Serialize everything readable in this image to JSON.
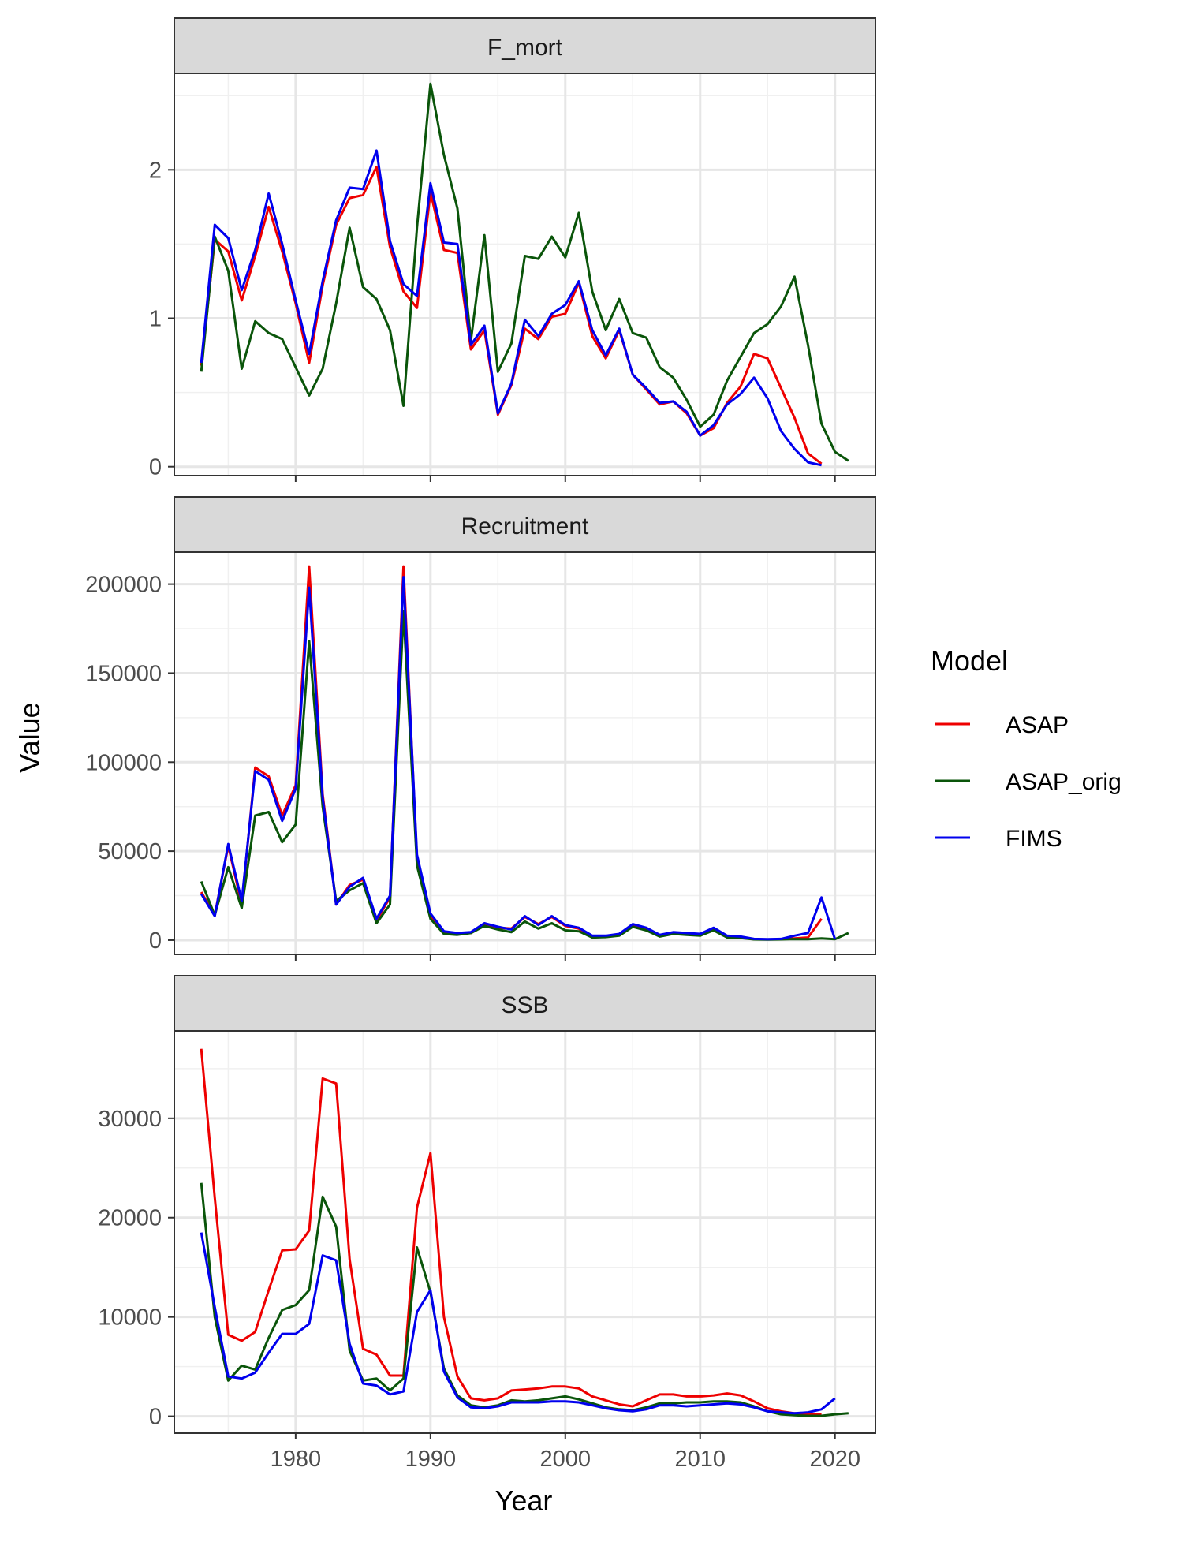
{
  "axis": {
    "xlabel": "Year",
    "ylabel": "Value"
  },
  "legend": {
    "title": "Model",
    "placement": "right"
  },
  "x_ticks": [
    1980,
    1990,
    2000,
    2010,
    2020
  ],
  "series_colors": {
    "ASAP": "#ee0000",
    "ASAP_orig": "#0a550a",
    "FIMS": "#0000ee"
  },
  "chart_data": [
    {
      "type": "line",
      "title": "F_mort",
      "xlabel": "Year",
      "ylabel": "Value",
      "xlim": [
        1971,
        2023
      ],
      "ylim": [
        -0.06,
        2.65
      ],
      "y_ticks": [
        0,
        1,
        2
      ],
      "y_tick_labels": [
        "0",
        "1",
        "2"
      ],
      "grid": true,
      "series": [
        {
          "name": "ASAP",
          "x": [
            1973,
            1974,
            1975,
            1976,
            1977,
            1978,
            1979,
            1980,
            1981,
            1982,
            1983,
            1984,
            1985,
            1986,
            1987,
            1988,
            1989,
            1990,
            1991,
            1992,
            1993,
            1994,
            1995,
            1996,
            1997,
            1998,
            1999,
            2000,
            2001,
            2002,
            2003,
            2004,
            2005,
            2006,
            2007,
            2008,
            2009,
            2010,
            2011,
            2012,
            2013,
            2014,
            2015,
            2016,
            2017,
            2018,
            2019
          ],
          "values": [
            0.68,
            1.53,
            1.45,
            1.12,
            1.42,
            1.75,
            1.45,
            1.1,
            0.7,
            1.22,
            1.63,
            1.81,
            1.83,
            2.02,
            1.48,
            1.18,
            1.07,
            1.85,
            1.46,
            1.44,
            0.79,
            0.92,
            0.35,
            0.55,
            0.93,
            0.86,
            1.01,
            1.03,
            1.24,
            0.88,
            0.73,
            0.92,
            0.62,
            0.52,
            0.42,
            0.44,
            0.36,
            0.21,
            0.26,
            0.43,
            0.54,
            0.76,
            0.73,
            0.53,
            0.33,
            0.09,
            0.02
          ]
        },
        {
          "name": "ASAP_orig",
          "x": [
            1973,
            1974,
            1975,
            1976,
            1977,
            1978,
            1979,
            1980,
            1981,
            1982,
            1983,
            1984,
            1985,
            1986,
            1987,
            1988,
            1989,
            1990,
            1991,
            1992,
            1993,
            1994,
            1995,
            1996,
            1997,
            1998,
            1999,
            2000,
            2001,
            2002,
            2003,
            2004,
            2005,
            2006,
            2007,
            2008,
            2009,
            2010,
            2011,
            2012,
            2013,
            2014,
            2015,
            2016,
            2017,
            2018,
            2019,
            2020,
            2021
          ],
          "values": [
            0.64,
            1.55,
            1.32,
            0.66,
            0.98,
            0.9,
            0.86,
            0.67,
            0.48,
            0.66,
            1.1,
            1.61,
            1.21,
            1.13,
            0.92,
            0.41,
            1.61,
            2.58,
            2.1,
            1.74,
            0.85,
            1.56,
            0.64,
            0.83,
            1.42,
            1.4,
            1.55,
            1.41,
            1.71,
            1.18,
            0.92,
            1.13,
            0.9,
            0.87,
            0.67,
            0.6,
            0.45,
            0.27,
            0.35,
            0.58,
            0.74,
            0.9,
            0.96,
            1.08,
            1.28,
            0.82,
            0.29,
            0.1,
            0.04
          ]
        },
        {
          "name": "FIMS",
          "x": [
            1973,
            1974,
            1975,
            1976,
            1977,
            1978,
            1979,
            1980,
            1981,
            1982,
            1983,
            1984,
            1985,
            1986,
            1987,
            1988,
            1989,
            1990,
            1991,
            1992,
            1993,
            1994,
            1995,
            1996,
            1997,
            1998,
            1999,
            2000,
            2001,
            2002,
            2003,
            2004,
            2005,
            2006,
            2007,
            2008,
            2009,
            2010,
            2011,
            2012,
            2013,
            2014,
            2015,
            2016,
            2017,
            2018,
            2019
          ],
          "values": [
            0.7,
            1.63,
            1.54,
            1.19,
            1.46,
            1.84,
            1.5,
            1.12,
            0.76,
            1.25,
            1.66,
            1.88,
            1.87,
            2.13,
            1.52,
            1.23,
            1.15,
            1.91,
            1.51,
            1.5,
            0.82,
            0.95,
            0.36,
            0.56,
            0.99,
            0.88,
            1.03,
            1.09,
            1.25,
            0.92,
            0.75,
            0.93,
            0.62,
            0.53,
            0.43,
            0.44,
            0.37,
            0.21,
            0.28,
            0.42,
            0.49,
            0.6,
            0.46,
            0.24,
            0.12,
            0.03,
            0.01
          ]
        }
      ]
    },
    {
      "type": "line",
      "title": "Recruitment",
      "xlabel": "Year",
      "ylabel": "Value",
      "xlim": [
        1971,
        2023
      ],
      "ylim": [
        -8000,
        218000
      ],
      "y_ticks": [
        0,
        50000,
        100000,
        150000,
        200000
      ],
      "y_tick_labels": [
        "0",
        "50000",
        "100000",
        "150000",
        "200000"
      ],
      "grid": true,
      "series": [
        {
          "name": "ASAP",
          "x": [
            1973,
            1974,
            1975,
            1976,
            1977,
            1978,
            1979,
            1980,
            1981,
            1982,
            1983,
            1984,
            1985,
            1986,
            1987,
            1988,
            1989,
            1990,
            1991,
            1992,
            1993,
            1994,
            1995,
            1996,
            1997,
            1998,
            1999,
            2000,
            2001,
            2002,
            2003,
            2004,
            2005,
            2006,
            2007,
            2008,
            2009,
            2010,
            2011,
            2012,
            2013,
            2014,
            2015,
            2016,
            2017,
            2018,
            2019
          ],
          "values": [
            27000,
            14000,
            53000,
            20000,
            97000,
            92000,
            70000,
            87000,
            210000,
            82000,
            20000,
            31000,
            34000,
            11000,
            24000,
            210000,
            45000,
            14000,
            4500,
            3500,
            4000,
            9000,
            7000,
            6500,
            13000,
            9000,
            13000,
            8000,
            6500,
            2000,
            2200,
            3000,
            8500,
            6500,
            2500,
            4000,
            3500,
            3000,
            6000,
            2000,
            1500,
            500,
            400,
            500,
            1000,
            1500,
            12000
          ]
        },
        {
          "name": "ASAP_orig",
          "x": [
            1973,
            1974,
            1975,
            1976,
            1977,
            1978,
            1979,
            1980,
            1981,
            1982,
            1983,
            1984,
            1985,
            1986,
            1987,
            1988,
            1989,
            1990,
            1991,
            1992,
            1993,
            1994,
            1995,
            1996,
            1997,
            1998,
            1999,
            2000,
            2001,
            2002,
            2003,
            2004,
            2005,
            2006,
            2007,
            2008,
            2009,
            2010,
            2011,
            2012,
            2013,
            2014,
            2015,
            2016,
            2017,
            2018,
            2019,
            2020,
            2021
          ],
          "values": [
            33000,
            14000,
            41000,
            18000,
            70000,
            72000,
            55000,
            65000,
            168000,
            75000,
            22000,
            28000,
            32000,
            9500,
            20000,
            185000,
            42000,
            12000,
            3500,
            3000,
            4000,
            8000,
            6000,
            4500,
            10500,
            6500,
            9500,
            5500,
            5000,
            1500,
            1700,
            2500,
            7500,
            5500,
            2000,
            3500,
            3000,
            2500,
            5500,
            1500,
            1200,
            400,
            300,
            400,
            600,
            500,
            1000,
            500,
            4000
          ]
        },
        {
          "name": "FIMS",
          "x": [
            1973,
            1974,
            1975,
            1976,
            1977,
            1978,
            1979,
            1980,
            1981,
            1982,
            1983,
            1984,
            1985,
            1986,
            1987,
            1988,
            1989,
            1990,
            1991,
            1992,
            1993,
            1994,
            1995,
            1996,
            1997,
            1998,
            1999,
            2000,
            2001,
            2002,
            2003,
            2004,
            2005,
            2006,
            2007,
            2008,
            2009,
            2010,
            2011,
            2012,
            2013,
            2014,
            2015,
            2016,
            2017,
            2018,
            2019,
            2020
          ],
          "values": [
            26000,
            13500,
            54000,
            22000,
            95000,
            90000,
            67000,
            85000,
            198000,
            80000,
            20000,
            30000,
            35000,
            12000,
            25000,
            204000,
            48000,
            15000,
            5000,
            4000,
            4500,
            9500,
            7500,
            6000,
            13500,
            8500,
            13500,
            8500,
            7000,
            2500,
            2500,
            3500,
            9000,
            7000,
            3000,
            4500,
            4000,
            3500,
            7000,
            2500,
            2000,
            700,
            500,
            700,
            2500,
            4000,
            24000,
            500
          ]
        }
      ]
    },
    {
      "type": "line",
      "title": "SSB",
      "xlabel": "Year",
      "ylabel": "Value",
      "xlim": [
        1971,
        2023
      ],
      "ylim": [
        -1700,
        38800
      ],
      "y_ticks": [
        0,
        10000,
        20000,
        30000
      ],
      "y_tick_labels": [
        "0",
        "10000",
        "20000",
        "30000"
      ],
      "grid": true,
      "series": [
        {
          "name": "ASAP",
          "x": [
            1973,
            1974,
            1975,
            1976,
            1977,
            1978,
            1979,
            1980,
            1981,
            1982,
            1983,
            1984,
            1985,
            1986,
            1987,
            1988,
            1989,
            1990,
            1991,
            1992,
            1993,
            1994,
            1995,
            1996,
            1997,
            1998,
            1999,
            2000,
            2001,
            2002,
            2003,
            2004,
            2005,
            2006,
            2007,
            2008,
            2009,
            2010,
            2011,
            2012,
            2013,
            2014,
            2015,
            2016,
            2017,
            2018,
            2019
          ],
          "values": [
            37000,
            22000,
            8200,
            7600,
            8500,
            12700,
            16700,
            16800,
            18700,
            34000,
            33500,
            15800,
            6800,
            6200,
            4100,
            4100,
            21000,
            26500,
            10000,
            4000,
            1800,
            1600,
            1800,
            2600,
            2700,
            2800,
            3000,
            3000,
            2800,
            2000,
            1600,
            1200,
            1000,
            1600,
            2200,
            2200,
            2000,
            2000,
            2100,
            2300,
            2100,
            1500,
            800,
            500,
            300,
            200,
            200
          ]
        },
        {
          "name": "ASAP_orig",
          "x": [
            1973,
            1974,
            1975,
            1976,
            1977,
            1978,
            1979,
            1980,
            1981,
            1982,
            1983,
            1984,
            1985,
            1986,
            1987,
            1988,
            1989,
            1990,
            1991,
            1992,
            1993,
            1994,
            1995,
            1996,
            1997,
            1998,
            1999,
            2000,
            2001,
            2002,
            2003,
            2004,
            2005,
            2006,
            2007,
            2008,
            2009,
            2010,
            2011,
            2012,
            2013,
            2014,
            2015,
            2016,
            2017,
            2018,
            2019,
            2020,
            2021
          ],
          "values": [
            23500,
            10000,
            3600,
            5100,
            4700,
            7900,
            10700,
            11200,
            12700,
            22100,
            19100,
            6600,
            3600,
            3800,
            2600,
            3800,
            17000,
            12500,
            4800,
            2100,
            1100,
            900,
            1100,
            1600,
            1500,
            1600,
            1800,
            2000,
            1700,
            1300,
            900,
            700,
            600,
            900,
            1300,
            1300,
            1400,
            1400,
            1500,
            1500,
            1400,
            1000,
            500,
            200,
            100,
            50,
            50,
            200,
            300
          ]
        },
        {
          "name": "FIMS",
          "x": [
            1973,
            1974,
            1975,
            1976,
            1977,
            1978,
            1979,
            1980,
            1981,
            1982,
            1983,
            1984,
            1985,
            1986,
            1987,
            1988,
            1989,
            1990,
            1991,
            1992,
            1993,
            1994,
            1995,
            1996,
            1997,
            1998,
            1999,
            2000,
            2001,
            2002,
            2003,
            2004,
            2005,
            2006,
            2007,
            2008,
            2009,
            2010,
            2011,
            2012,
            2013,
            2014,
            2015,
            2016,
            2017,
            2018,
            2019,
            2020
          ],
          "values": [
            18500,
            11000,
            4000,
            3800,
            4400,
            6400,
            8300,
            8300,
            9300,
            16200,
            15700,
            7300,
            3300,
            3100,
            2200,
            2500,
            10500,
            12700,
            4500,
            1900,
            900,
            800,
            1000,
            1400,
            1400,
            1400,
            1500,
            1500,
            1400,
            1100,
            800,
            600,
            500,
            700,
            1100,
            1100,
            1000,
            1100,
            1200,
            1300,
            1200,
            900,
            500,
            400,
            300,
            400,
            700,
            1800
          ]
        }
      ]
    }
  ]
}
